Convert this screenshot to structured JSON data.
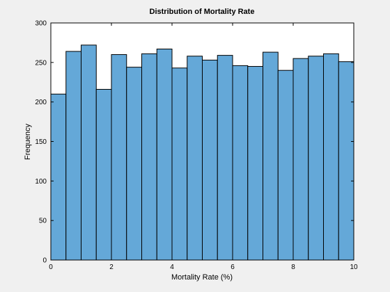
{
  "chart_data": {
    "type": "bar",
    "title": "Distribution of Mortality Rate",
    "xlabel": "Mortality Rate (%)",
    "ylabel": "Frequency",
    "xlim": [
      0,
      10
    ],
    "ylim": [
      0,
      300
    ],
    "xticks": [
      0,
      2,
      4,
      6,
      8,
      10
    ],
    "yticks": [
      0,
      50,
      100,
      150,
      200,
      250,
      300
    ],
    "bin_edges": [
      0,
      0.5,
      1,
      1.5,
      2,
      2.5,
      3,
      3.5,
      4,
      4.5,
      5,
      5.5,
      6,
      6.5,
      7,
      7.5,
      8,
      8.5,
      9,
      9.5,
      10
    ],
    "values": [
      210,
      264,
      272,
      216,
      260,
      244,
      261,
      267,
      243,
      258,
      253,
      259,
      246,
      245,
      263,
      240,
      255,
      258,
      261,
      251
    ],
    "bar_color": "#64a8d8",
    "edge_color": "#000000",
    "plot_background": "#ffffff",
    "figure_background": "#f0f0f0",
    "grid": false
  }
}
